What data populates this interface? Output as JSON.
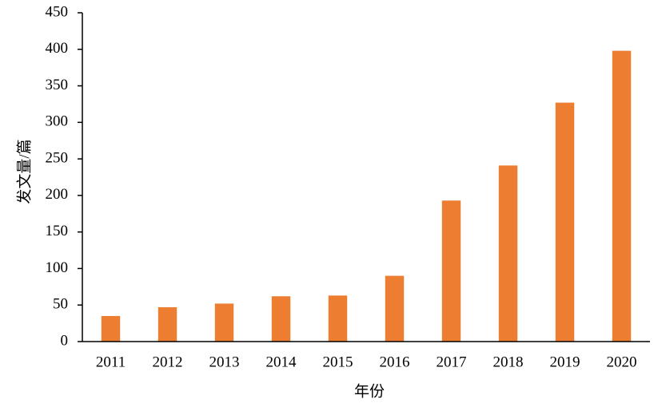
{
  "chart_data": {
    "type": "bar",
    "x_label": "年份",
    "y_label": "发文量/篇",
    "categories": [
      "2011",
      "2012",
      "2013",
      "2014",
      "2015",
      "2016",
      "2017",
      "2018",
      "2019",
      "2020"
    ],
    "values": [
      35,
      47,
      52,
      62,
      63,
      90,
      193,
      241,
      327,
      398
    ],
    "color": "#ed7d31",
    "ylim": [
      0,
      450
    ],
    "yticks": [
      0,
      50,
      100,
      150,
      200,
      250,
      300,
      350,
      400,
      450
    ],
    "grid": false
  }
}
